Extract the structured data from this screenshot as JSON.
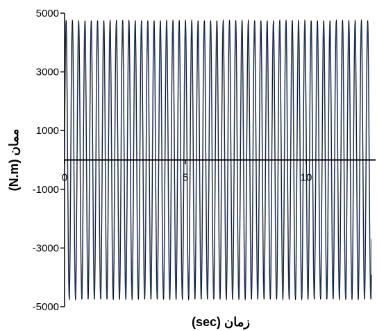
{
  "chart_data": {
    "type": "line",
    "xlabel": "زمان (sec)",
    "ylabel": "ممان (N.m)",
    "xlim": [
      0,
      12.7
    ],
    "ylim": [
      -5000,
      5000
    ],
    "x_ticks": [
      0,
      5,
      10
    ],
    "x_tick_labels": [
      "0",
      "5",
      "10"
    ],
    "y_ticks": [
      5000,
      3000,
      1000,
      -1000,
      -3000,
      -5000
    ],
    "y_tick_labels": [
      "5000",
      "3000",
      "1000",
      "-1000",
      "-3000",
      "-5000"
    ],
    "grid": false,
    "series": [
      {
        "color": "#000000",
        "amplitude": 4750,
        "period_sec": 0.26,
        "x_start": 0,
        "x_end": 12.7,
        "values_range": [
          -4750,
          4750
        ]
      },
      {
        "color": "#2b4a86",
        "amplitude": 4650,
        "period_sec": 0.26,
        "x_start": 0,
        "x_end": 12.7,
        "values_range": [
          -4650,
          4650
        ]
      }
    ]
  }
}
